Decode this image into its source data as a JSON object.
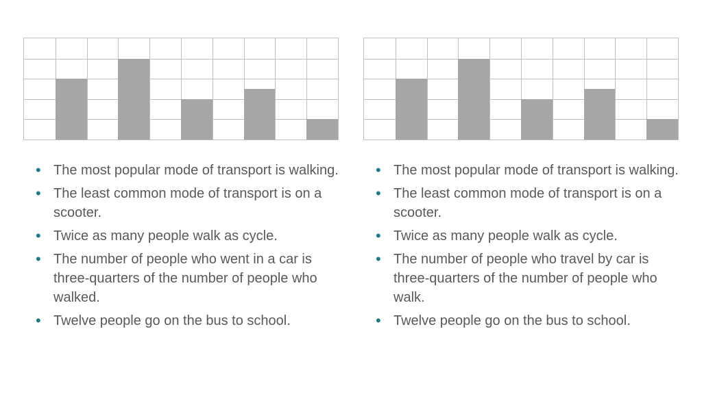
{
  "panels": [
    {
      "chart": {
        "type": "bar",
        "rows": 5,
        "cols": 10,
        "bar_color": "#a6a6a6",
        "grid_color": "#bfbfbf",
        "bg_color": "#ffffff",
        "bars": [
          {
            "col": 1,
            "height": 3
          },
          {
            "col": 3,
            "height": 4
          },
          {
            "col": 5,
            "height": 2
          },
          {
            "col": 7,
            "height": 2.5
          },
          {
            "col": 9,
            "height": 1
          }
        ]
      },
      "notes": [
        "The most popular mode of transport is walking.",
        "The least common mode of transport is on a scooter.",
        "Twice as many people walk as cycle.",
        "The number of people who went in a car is three-quarters of the number of people who walked.",
        "Twelve people go on the bus to school."
      ]
    },
    {
      "chart": {
        "type": "bar",
        "rows": 5,
        "cols": 10,
        "bar_color": "#a6a6a6",
        "grid_color": "#bfbfbf",
        "bg_color": "#ffffff",
        "bars": [
          {
            "col": 1,
            "height": 3
          },
          {
            "col": 3,
            "height": 4
          },
          {
            "col": 5,
            "height": 2
          },
          {
            "col": 7,
            "height": 2.5
          },
          {
            "col": 9,
            "height": 1
          }
        ]
      },
      "notes": [
        "The most popular mode of transport is walking.",
        "The least common mode of transport is on a scooter.",
        "Twice as many people walk as cycle.",
        "The number of people who travel by car is three-quarters of the number of people who walk.",
        "Twelve people go on the bus to school."
      ]
    }
  ],
  "text_color": "#595959",
  "bullet_color": "#1f7a8c",
  "note_fontsize": 20
}
